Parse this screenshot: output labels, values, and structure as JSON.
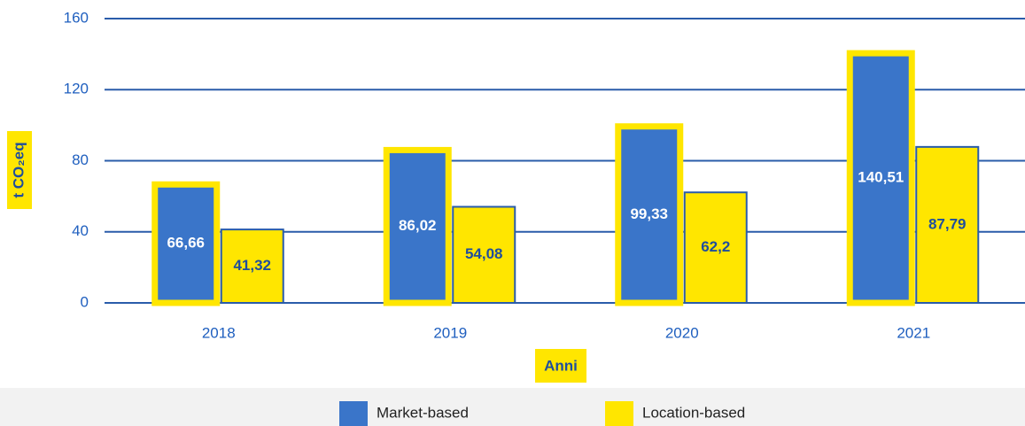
{
  "chart_data": {
    "type": "bar",
    "x_label": "Anni",
    "y_label": "t CO₂eq",
    "categories": [
      "2018",
      "2019",
      "2020",
      "2021"
    ],
    "series": [
      {
        "name": "Market-based",
        "color": "#3a75c9",
        "values": [
          66.66,
          86.02,
          99.33,
          140.51
        ],
        "value_labels": [
          "66,66",
          "86,02",
          "99,33",
          "140,51"
        ]
      },
      {
        "name": "Location-based",
        "color": "#ffe600",
        "values": [
          41.32,
          54.08,
          62.2,
          87.79
        ],
        "value_labels": [
          "41,32",
          "54,08",
          "62,2",
          "87,79"
        ]
      }
    ],
    "ylim": [
      0,
      160
    ],
    "yticks": [
      0,
      40,
      80,
      120,
      160
    ],
    "grid": true,
    "legend": "bottom"
  }
}
